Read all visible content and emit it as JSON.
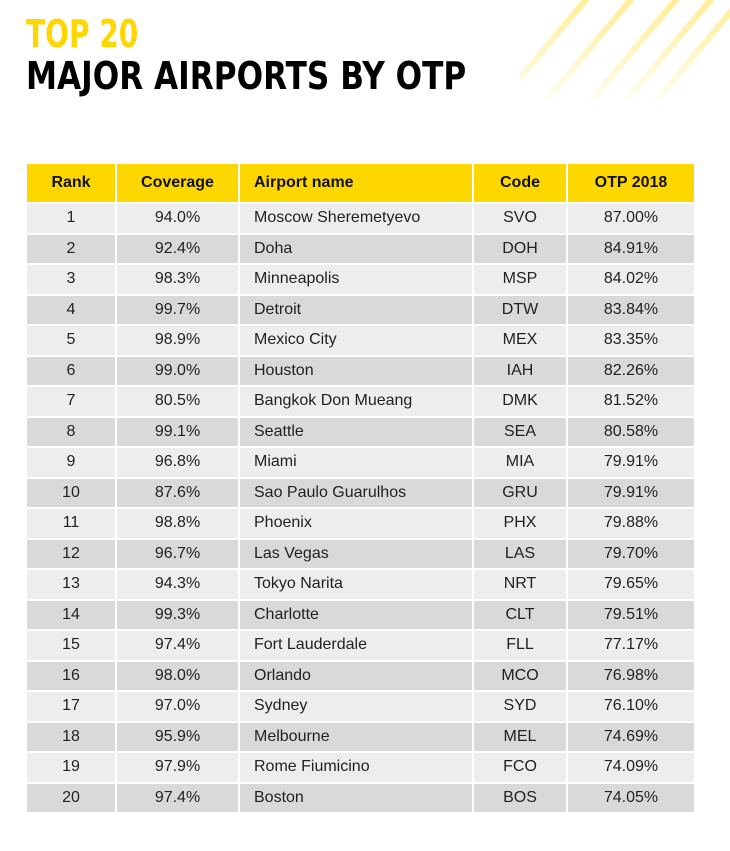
{
  "title": {
    "line1": "TOP 20",
    "line2": "MAJOR AIRPORTS BY OTP"
  },
  "colors": {
    "accent": "#FFD700",
    "row_light": "#EDEDED",
    "row_dark": "#D9D9D9"
  },
  "table": {
    "headers": [
      "Rank",
      "Coverage",
      "Airport name",
      "Code",
      "OTP 2018"
    ],
    "rows": [
      [
        "1",
        "94.0%",
        "Moscow Sheremetyevo",
        "SVO",
        "87.00%"
      ],
      [
        "2",
        "92.4%",
        "Doha",
        "DOH",
        "84.91%"
      ],
      [
        "3",
        "98.3%",
        "Minneapolis",
        "MSP",
        "84.02%"
      ],
      [
        "4",
        "99.7%",
        "Detroit",
        "DTW",
        "83.84%"
      ],
      [
        "5",
        "98.9%",
        "Mexico City",
        "MEX",
        "83.35%"
      ],
      [
        "6",
        "99.0%",
        "Houston",
        "IAH",
        "82.26%"
      ],
      [
        "7",
        "80.5%",
        "Bangkok Don Mueang",
        "DMK",
        "81.52%"
      ],
      [
        "8",
        "99.1%",
        "Seattle",
        "SEA",
        "80.58%"
      ],
      [
        "9",
        "96.8%",
        "Miami",
        "MIA",
        "79.91%"
      ],
      [
        "10",
        "87.6%",
        "Sao Paulo Guarulhos",
        "GRU",
        "79.91%"
      ],
      [
        "11",
        "98.8%",
        "Phoenix",
        "PHX",
        "79.88%"
      ],
      [
        "12",
        "96.7%",
        "Las Vegas",
        "LAS",
        "79.70%"
      ],
      [
        "13",
        "94.3%",
        "Tokyo Narita",
        "NRT",
        "79.65%"
      ],
      [
        "14",
        "99.3%",
        "Charlotte",
        "CLT",
        "79.51%"
      ],
      [
        "15",
        "97.4%",
        "Fort Lauderdale",
        "FLL",
        "77.17%"
      ],
      [
        "16",
        "98.0%",
        "Orlando",
        "MCO",
        "76.98%"
      ],
      [
        "17",
        "97.0%",
        "Sydney",
        "SYD",
        "76.10%"
      ],
      [
        "18",
        "95.9%",
        "Melbourne",
        "MEL",
        "74.69%"
      ],
      [
        "19",
        "97.9%",
        "Rome Fiumicino",
        "FCO",
        "74.09%"
      ],
      [
        "20",
        "97.4%",
        "Boston",
        "BOS",
        "74.05%"
      ]
    ]
  }
}
